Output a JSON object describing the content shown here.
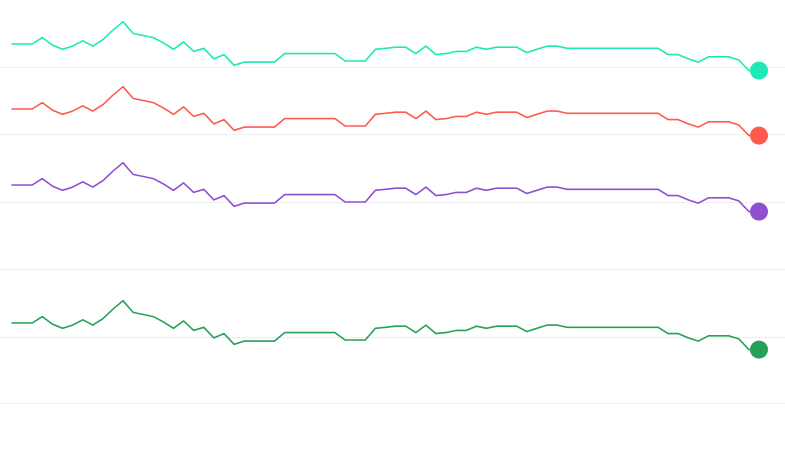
{
  "chart_data": {
    "type": "line",
    "grid": true,
    "legend": "none",
    "x": [
      0,
      1,
      2,
      3,
      4,
      5,
      6,
      7,
      8,
      9,
      10,
      11,
      12,
      13,
      14,
      15,
      16,
      17,
      18,
      19,
      20,
      21,
      22,
      23,
      24,
      25,
      26,
      27,
      28,
      29,
      30,
      31,
      32,
      33,
      34,
      35,
      36,
      37,
      38,
      39,
      40,
      41,
      42,
      43,
      44,
      45,
      46,
      47,
      48,
      49,
      50,
      51,
      52,
      53,
      54,
      55,
      56,
      57,
      58,
      59,
      60,
      61,
      62,
      63,
      64,
      65,
      66,
      67,
      68,
      69,
      70,
      71,
      72,
      73,
      74
    ],
    "xlim": [
      0,
      74
    ],
    "series": [
      {
        "color": "#1de9b6",
        "end_marker": true,
        "ylim": [
          0,
          100
        ],
        "values": [
          50,
          50,
          50,
          56,
          49,
          45,
          48,
          53,
          48,
          54,
          63,
          71,
          60,
          58,
          56,
          51,
          45,
          52,
          43,
          46,
          36,
          40,
          30,
          33,
          33,
          33,
          33,
          41,
          41,
          41,
          41,
          41,
          41,
          34,
          34,
          34,
          45,
          46,
          47,
          47,
          41,
          48,
          40,
          41,
          43,
          43,
          47,
          45,
          47,
          47,
          47,
          42,
          45,
          48,
          48,
          46,
          46,
          46,
          46,
          46,
          46,
          46,
          46,
          46,
          46,
          40,
          40,
          36,
          33,
          38,
          38,
          38,
          35,
          25,
          25
        ]
      },
      {
        "color": "#ff5a4e",
        "end_marker": true,
        "ylim": [
          0,
          100
        ],
        "values": [
          50,
          50,
          50,
          56,
          49,
          45,
          48,
          53,
          48,
          54,
          63,
          71,
          60,
          58,
          56,
          51,
          45,
          52,
          43,
          46,
          36,
          40,
          30,
          33,
          33,
          33,
          33,
          41,
          41,
          41,
          41,
          41,
          41,
          34,
          34,
          34,
          45,
          46,
          47,
          47,
          41,
          48,
          40,
          41,
          43,
          43,
          47,
          45,
          47,
          47,
          47,
          42,
          45,
          48,
          48,
          46,
          46,
          46,
          46,
          46,
          46,
          46,
          46,
          46,
          46,
          40,
          40,
          36,
          33,
          38,
          38,
          38,
          35,
          25,
          25
        ]
      },
      {
        "color": "#8e4fd1",
        "end_marker": true,
        "ylim": [
          0,
          100
        ],
        "values": [
          50,
          50,
          50,
          56,
          49,
          45,
          48,
          53,
          48,
          54,
          63,
          71,
          60,
          58,
          56,
          51,
          45,
          52,
          43,
          46,
          36,
          40,
          30,
          33,
          33,
          33,
          33,
          41,
          41,
          41,
          41,
          41,
          41,
          34,
          34,
          34,
          45,
          46,
          47,
          47,
          41,
          48,
          40,
          41,
          43,
          43,
          47,
          45,
          47,
          47,
          47,
          42,
          45,
          48,
          48,
          46,
          46,
          46,
          46,
          46,
          46,
          46,
          46,
          46,
          46,
          40,
          40,
          36,
          33,
          38,
          38,
          38,
          35,
          25,
          25
        ]
      },
      {
        "color": "#27a05a",
        "end_marker": true,
        "ylim": [
          0,
          100
        ],
        "values": [
          50,
          50,
          50,
          56,
          49,
          45,
          48,
          53,
          48,
          54,
          63,
          71,
          60,
          58,
          56,
          51,
          45,
          52,
          43,
          46,
          36,
          40,
          30,
          33,
          33,
          33,
          33,
          41,
          41,
          41,
          41,
          41,
          41,
          34,
          34,
          34,
          45,
          46,
          47,
          47,
          41,
          48,
          40,
          41,
          43,
          43,
          47,
          45,
          47,
          47,
          47,
          42,
          45,
          48,
          48,
          46,
          46,
          46,
          46,
          46,
          46,
          46,
          46,
          46,
          46,
          40,
          40,
          36,
          33,
          38,
          38,
          38,
          35,
          25,
          25
        ]
      }
    ]
  }
}
